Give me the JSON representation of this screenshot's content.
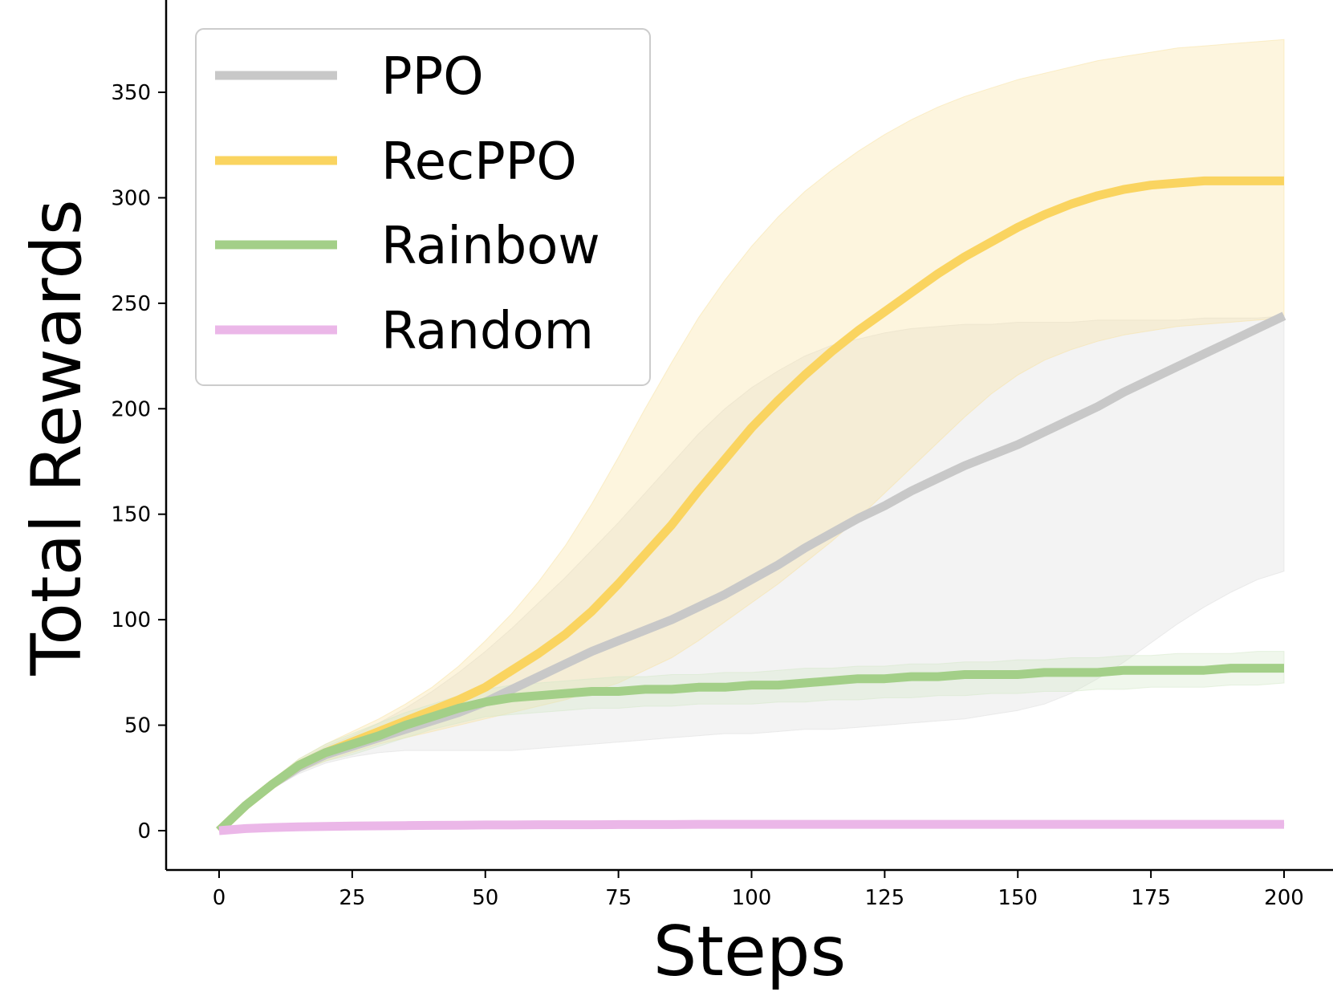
{
  "chart_data": {
    "type": "line",
    "xlabel": "Steps",
    "ylabel": "Total Rewards",
    "xlim": [
      -10,
      210
    ],
    "ylim": [
      -18,
      394
    ],
    "x_ticks": [
      0,
      25,
      50,
      75,
      100,
      125,
      150,
      175,
      200
    ],
    "y_ticks": [
      0,
      50,
      100,
      150,
      200,
      250,
      300,
      350
    ],
    "x_tick_labels": [
      "0",
      "25",
      "50",
      "75",
      "100",
      "125",
      "150",
      "175",
      "200"
    ],
    "y_tick_labels": [
      "0",
      "50",
      "100",
      "150",
      "200",
      "250",
      "300",
      "350"
    ],
    "grid": false,
    "legend_position": "upper-left",
    "x": [
      0,
      5,
      10,
      15,
      20,
      25,
      30,
      35,
      40,
      45,
      50,
      55,
      60,
      65,
      70,
      75,
      80,
      85,
      90,
      95,
      100,
      105,
      110,
      115,
      120,
      125,
      130,
      135,
      140,
      145,
      150,
      155,
      160,
      165,
      170,
      175,
      180,
      185,
      190,
      195,
      200
    ],
    "series": [
      {
        "name": "PPO",
        "color": "#c8c8c8",
        "band_color": "#dcdcdc",
        "mean": [
          0,
          12,
          22,
          30,
          36,
          40,
          44,
          48,
          52,
          56,
          61,
          67,
          73,
          79,
          85,
          90,
          95,
          100,
          106,
          112,
          119,
          126,
          134,
          141,
          148,
          154,
          161,
          167,
          173,
          178,
          183,
          189,
          195,
          201,
          208,
          214,
          220,
          226,
          232,
          238,
          244
        ],
        "lower": [
          0,
          11,
          20,
          27,
          32,
          35,
          37,
          38,
          38,
          38,
          38,
          38,
          39,
          40,
          41,
          42,
          43,
          44,
          45,
          46,
          46,
          47,
          48,
          48,
          49,
          50,
          51,
          52,
          53,
          55,
          57,
          60,
          65,
          72,
          80,
          89,
          98,
          106,
          113,
          119,
          123
        ],
        "upper": [
          0,
          13,
          24,
          33,
          40,
          45,
          51,
          58,
          66,
          75,
          85,
          96,
          108,
          120,
          133,
          146,
          160,
          174,
          188,
          200,
          210,
          218,
          225,
          230,
          233,
          236,
          238,
          239,
          240,
          240,
          241,
          241,
          241,
          242,
          242,
          242,
          242,
          243,
          243,
          243,
          244
        ]
      },
      {
        "name": "RecPPO",
        "color": "#fad460",
        "band_color": "#f8e2a0",
        "mean": [
          0,
          12,
          22,
          31,
          37,
          42,
          47,
          52,
          57,
          62,
          68,
          76,
          84,
          93,
          104,
          117,
          131,
          145,
          161,
          176,
          191,
          204,
          216,
          227,
          237,
          246,
          255,
          264,
          272,
          279,
          286,
          292,
          297,
          301,
          304,
          306,
          307,
          308,
          308,
          308,
          308
        ],
        "lower": [
          0,
          11,
          20,
          28,
          33,
          37,
          41,
          44,
          47,
          50,
          53,
          56,
          59,
          62,
          66,
          70,
          76,
          82,
          90,
          99,
          108,
          117,
          127,
          137,
          148,
          160,
          172,
          184,
          196,
          207,
          216,
          223,
          228,
          232,
          235,
          237,
          239,
          240,
          241,
          242,
          243
        ],
        "upper": [
          0,
          13,
          24,
          34,
          41,
          47,
          53,
          60,
          68,
          78,
          90,
          103,
          118,
          135,
          155,
          177,
          200,
          222,
          243,
          261,
          277,
          291,
          303,
          313,
          322,
          330,
          337,
          343,
          348,
          352,
          356,
          359,
          362,
          365,
          367,
          369,
          371,
          372,
          373,
          374,
          375
        ]
      },
      {
        "name": "Rainbow",
        "color": "#a3cf88",
        "band_color": "#d4e7c8",
        "mean": [
          0,
          12,
          22,
          31,
          37,
          41,
          45,
          50,
          54,
          58,
          61,
          63,
          64,
          65,
          66,
          66,
          67,
          67,
          68,
          68,
          69,
          69,
          70,
          71,
          72,
          72,
          73,
          73,
          74,
          74,
          74,
          75,
          75,
          75,
          76,
          76,
          76,
          76,
          77,
          77,
          77
        ],
        "lower": [
          0,
          11,
          20,
          28,
          33,
          36,
          40,
          44,
          48,
          51,
          54,
          55,
          56,
          57,
          58,
          58,
          59,
          59,
          60,
          60,
          60,
          61,
          61,
          62,
          62,
          63,
          63,
          64,
          64,
          65,
          65,
          66,
          66,
          67,
          67,
          68,
          68,
          68,
          69,
          69,
          70
        ],
        "upper": [
          0,
          13,
          24,
          34,
          41,
          46,
          51,
          56,
          60,
          64,
          67,
          69,
          70,
          71,
          72,
          73,
          73,
          74,
          74,
          75,
          75,
          76,
          77,
          77,
          78,
          78,
          79,
          79,
          80,
          80,
          81,
          81,
          82,
          82,
          83,
          83,
          84,
          84,
          84,
          85,
          85
        ]
      },
      {
        "name": "Random",
        "color": "#ebb7e8",
        "band_color": "#f4daf2",
        "mean": [
          0,
          1,
          1.5,
          1.8,
          2,
          2.2,
          2.3,
          2.4,
          2.5,
          2.6,
          2.7,
          2.7,
          2.8,
          2.8,
          2.8,
          2.9,
          2.9,
          2.9,
          3,
          3,
          3,
          3,
          3,
          3,
          3,
          3,
          3,
          3,
          3,
          3,
          3,
          3,
          3,
          3,
          3,
          3,
          3,
          3,
          3,
          3,
          3
        ],
        "lower": [
          0,
          0.5,
          1,
          1.3,
          1.5,
          1.7,
          1.8,
          1.9,
          2,
          2.1,
          2.2,
          2.2,
          2.3,
          2.3,
          2.3,
          2.4,
          2.4,
          2.4,
          2.5,
          2.5,
          2.5,
          2.5,
          2.5,
          2.5,
          2.5,
          2.5,
          2.5,
          2.5,
          2.5,
          2.5,
          2.5,
          2.5,
          2.5,
          2.5,
          2.5,
          2.5,
          2.5,
          2.5,
          2.5,
          2.5,
          2.5
        ],
        "upper": [
          0,
          1.5,
          2,
          2.3,
          2.5,
          2.7,
          2.8,
          2.9,
          3,
          3.1,
          3.2,
          3.2,
          3.3,
          3.3,
          3.3,
          3.4,
          3.4,
          3.4,
          3.5,
          3.5,
          3.5,
          3.5,
          3.5,
          3.5,
          3.5,
          3.5,
          3.5,
          3.5,
          3.5,
          3.5,
          3.5,
          3.5,
          3.5,
          3.5,
          3.5,
          3.5,
          3.5,
          3.5,
          3.5,
          3.5,
          3.5
        ]
      }
    ]
  }
}
